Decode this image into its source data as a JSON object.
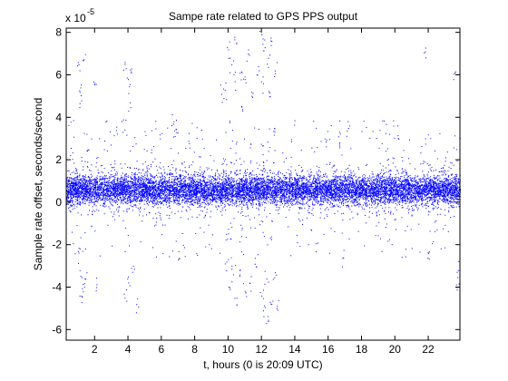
{
  "chart_data": {
    "type": "scatter",
    "title": "Sampe rate related to GPS PPS output",
    "xlabel": "t, hours (0 is 20:09 UTC)",
    "ylabel": "Sample rate offset, seconds/second",
    "y_exponent_label": "x 10",
    "y_exponent_power": "-5",
    "xlim": [
      0.3,
      23.9
    ],
    "ylim": [
      -6.5,
      8.2
    ],
    "x_ticks": [
      2,
      4,
      6,
      8,
      10,
      12,
      14,
      16,
      18,
      20,
      22
    ],
    "y_ticks": [
      -6,
      -4,
      -2,
      0,
      2,
      4,
      6,
      8
    ],
    "x_tick_labels": [
      "2",
      "4",
      "6",
      "8",
      "10",
      "12",
      "14",
      "16",
      "18",
      "20",
      "22"
    ],
    "y_tick_labels": [
      "-6",
      "-4",
      "-2",
      "0",
      "2",
      "4",
      "6",
      "8"
    ],
    "grid": false,
    "marker_color": "#0000ff",
    "series": [
      {
        "dense_band": {
          "x_range": [
            0.3,
            23.9
          ],
          "core_range": [
            -0.4,
            1.6
          ],
          "halo_range": [
            -1.0,
            2.3
          ]
        },
        "bursts": [
          {
            "x": 1.0,
            "y": 6.6
          },
          {
            "x": 1.1,
            "y": 5.2
          },
          {
            "x": 1.2,
            "y": 4.8
          },
          {
            "x": 1.3,
            "y": 6.7
          },
          {
            "x": 1.0,
            "y": -2.3
          },
          {
            "x": 1.1,
            "y": -3.2
          },
          {
            "x": 1.2,
            "y": -4.4
          },
          {
            "x": 1.3,
            "y": -4.2
          },
          {
            "x": 1.4,
            "y": -3.6
          },
          {
            "x": 2.0,
            "y": 5.6
          },
          {
            "x": 2.1,
            "y": -4.0
          },
          {
            "x": 3.8,
            "y": 6.6
          },
          {
            "x": 4.0,
            "y": 5.8
          },
          {
            "x": 4.2,
            "y": 6.3
          },
          {
            "x": 4.1,
            "y": 4.7
          },
          {
            "x": 3.8,
            "y": -4.5
          },
          {
            "x": 4.0,
            "y": -3.5
          },
          {
            "x": 4.3,
            "y": -3.0
          },
          {
            "x": 4.5,
            "y": -4.8
          },
          {
            "x": 6.7,
            "y": 3.7
          },
          {
            "x": 6.9,
            "y": 3.3
          },
          {
            "x": 7.0,
            "y": -2.7
          },
          {
            "x": 9.6,
            "y": 5.1
          },
          {
            "x": 9.8,
            "y": 5.3
          },
          {
            "x": 10.0,
            "y": 7.2
          },
          {
            "x": 10.2,
            "y": 6.5
          },
          {
            "x": 10.4,
            "y": 5.7
          },
          {
            "x": 10.5,
            "y": 7.5
          },
          {
            "x": 10.7,
            "y": 6.1
          },
          {
            "x": 10.8,
            "y": 4.5
          },
          {
            "x": 11.0,
            "y": 5.8
          },
          {
            "x": 11.2,
            "y": 7.0
          },
          {
            "x": 11.4,
            "y": 5.2
          },
          {
            "x": 11.8,
            "y": 6.4
          },
          {
            "x": 12.0,
            "y": 7.9
          },
          {
            "x": 12.1,
            "y": 5.6
          },
          {
            "x": 12.2,
            "y": 7.3
          },
          {
            "x": 12.4,
            "y": 6.8
          },
          {
            "x": 12.5,
            "y": 5.0
          },
          {
            "x": 12.6,
            "y": 7.6
          },
          {
            "x": 12.8,
            "y": 6.2
          },
          {
            "x": 9.9,
            "y": -2.8
          },
          {
            "x": 10.1,
            "y": -4.1
          },
          {
            "x": 10.3,
            "y": -3.4
          },
          {
            "x": 10.5,
            "y": -4.5
          },
          {
            "x": 10.7,
            "y": -3.2
          },
          {
            "x": 11.0,
            "y": -4.2
          },
          {
            "x": 11.3,
            "y": -3.8
          },
          {
            "x": 11.6,
            "y": -2.9
          },
          {
            "x": 12.0,
            "y": -4.4
          },
          {
            "x": 12.1,
            "y": -5.1
          },
          {
            "x": 12.3,
            "y": -3.6
          },
          {
            "x": 12.4,
            "y": -5.6
          },
          {
            "x": 12.6,
            "y": -4.8
          },
          {
            "x": 12.8,
            "y": -3.3
          },
          {
            "x": 12.9,
            "y": -5.0
          },
          {
            "x": 16.6,
            "y": 3.1
          },
          {
            "x": 16.9,
            "y": -2.6
          },
          {
            "x": 17.2,
            "y": 3.5
          },
          {
            "x": 21.8,
            "y": 7.1
          },
          {
            "x": 22.0,
            "y": -2.4
          },
          {
            "x": 23.5,
            "y": 5.8
          },
          {
            "x": 23.7,
            "y": -4.0
          },
          {
            "x": 23.8,
            "y": -3.2
          }
        ]
      }
    ]
  }
}
